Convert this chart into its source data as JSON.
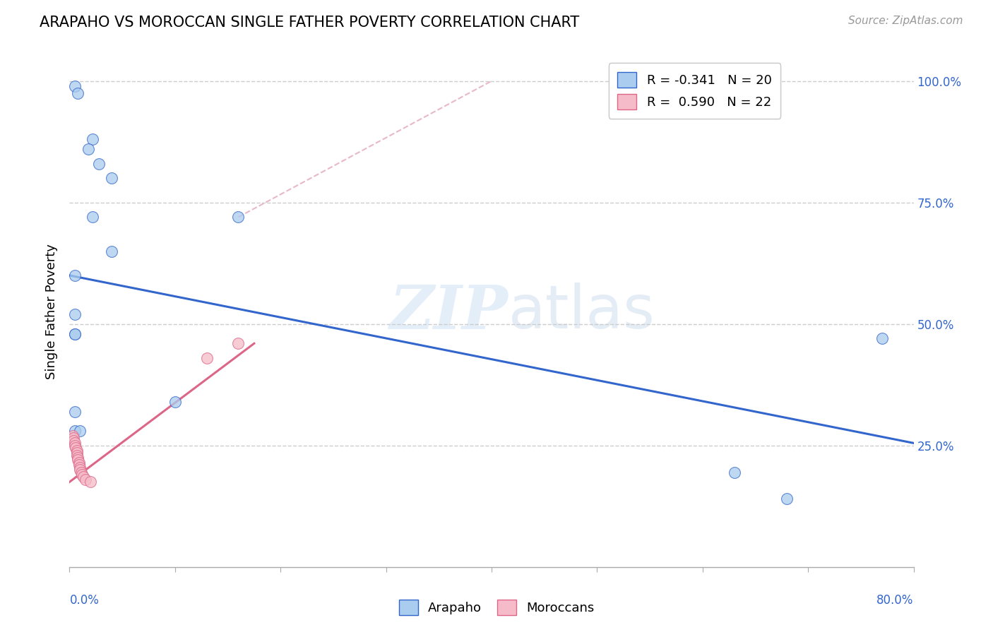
{
  "title": "ARAPAHO VS MOROCCAN SINGLE FATHER POVERTY CORRELATION CHART",
  "source": "Source: ZipAtlas.com",
  "ylabel": "Single Father Poverty",
  "xmin": 0.0,
  "xmax": 0.8,
  "ymin": 0.0,
  "ymax": 1.05,
  "watermark": "ZIPatlas",
  "legend_blue_r": "R = -0.341",
  "legend_blue_n": "N = 20",
  "legend_pink_r": "R =  0.590",
  "legend_pink_n": "N = 22",
  "blue_color": "#aaccee",
  "pink_color": "#f5bbc8",
  "blue_line_color": "#3366cc",
  "pink_line_color": "#dd6688",
  "ref_line_color": "#e8b8c8",
  "grid_color": "#cccccc",
  "arapaho_x": [
    0.005,
    0.008,
    0.022,
    0.018,
    0.028,
    0.04,
    0.022,
    0.04,
    0.16,
    0.005,
    0.005,
    0.005,
    0.005,
    0.005,
    0.01,
    0.005,
    0.1,
    0.77,
    0.63,
    0.68
  ],
  "arapaho_y": [
    0.99,
    0.975,
    0.88,
    0.86,
    0.83,
    0.8,
    0.72,
    0.65,
    0.72,
    0.6,
    0.52,
    0.48,
    0.32,
    0.28,
    0.28,
    0.48,
    0.34,
    0.47,
    0.195,
    0.14
  ],
  "moroccan_x": [
    0.003,
    0.004,
    0.004,
    0.005,
    0.005,
    0.006,
    0.007,
    0.007,
    0.007,
    0.008,
    0.008,
    0.009,
    0.009,
    0.01,
    0.01,
    0.011,
    0.012,
    0.013,
    0.015,
    0.02,
    0.13,
    0.16
  ],
  "moroccan_y": [
    0.27,
    0.265,
    0.26,
    0.255,
    0.25,
    0.245,
    0.24,
    0.235,
    0.23,
    0.225,
    0.22,
    0.215,
    0.21,
    0.205,
    0.2,
    0.195,
    0.19,
    0.185,
    0.18,
    0.175,
    0.43,
    0.46
  ],
  "blue_line_x": [
    0.0,
    0.8
  ],
  "blue_line_y": [
    0.6,
    0.255
  ],
  "pink_line_x": [
    0.0,
    0.175
  ],
  "pink_line_y": [
    0.175,
    0.46
  ],
  "ref_line_x": [
    0.16,
    0.4
  ],
  "ref_line_y": [
    0.72,
    1.0
  ],
  "ytick_positions": [
    0.25,
    0.5,
    0.75,
    1.0
  ],
  "ytick_labels": [
    "25.0%",
    "50.0%",
    "75.0%",
    "100.0%"
  ],
  "title_fontsize": 15,
  "source_fontsize": 11,
  "axis_label_color": "#3366cc",
  "background_color": "#ffffff"
}
